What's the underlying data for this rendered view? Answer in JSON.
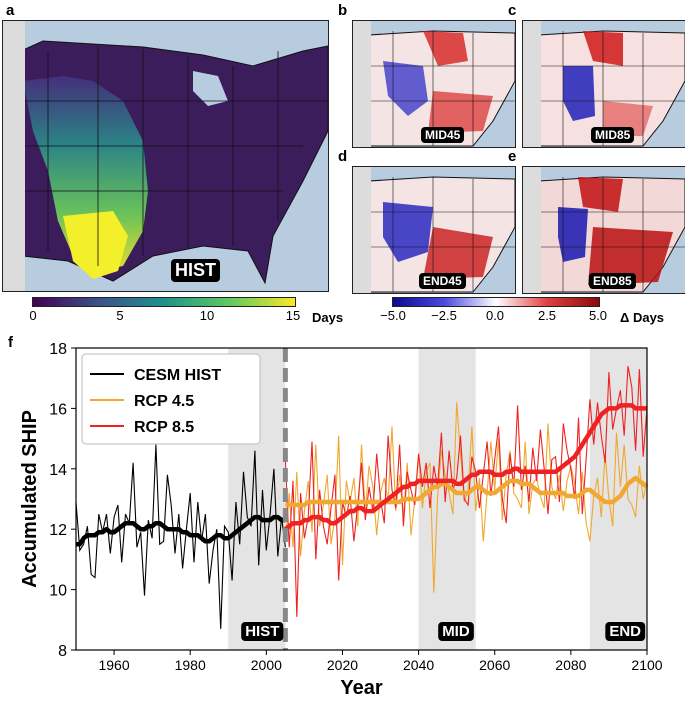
{
  "panels": {
    "a": {
      "label": "a",
      "tag": "HIST"
    },
    "b": {
      "label": "b",
      "tag": "MID45"
    },
    "c": {
      "label": "c",
      "tag": "MID85"
    },
    "d": {
      "label": "d",
      "tag": "END45"
    },
    "e": {
      "label": "e",
      "tag": "END85"
    },
    "f": {
      "label": "f"
    }
  },
  "colorbars": {
    "hist": {
      "ticks": [
        "0",
        "5",
        "10",
        "15"
      ],
      "unit": "Days",
      "min": 0,
      "max": 15
    },
    "diff": {
      "ticks": [
        "−5.0",
        "−2.5",
        "0.0",
        "2.5",
        "5.0"
      ],
      "unit": "Δ Days",
      "min": -5,
      "max": 5
    }
  },
  "colors": {
    "cesm": "#000000",
    "rcp45": "#f0a830",
    "rcp85": "#ee2222",
    "shade": "#e4e4e4",
    "ocean": "#b8cce0"
  },
  "chart_data": {
    "type": "line",
    "title": "",
    "xlabel": "Year",
    "ylabel": "Accumulated SHIP",
    "xlim": [
      1950,
      2100
    ],
    "ylim": [
      8,
      18
    ],
    "xticks": [
      1960,
      1980,
      2000,
      2020,
      2040,
      2060,
      2080,
      2100
    ],
    "yticks": [
      8,
      10,
      12,
      14,
      16,
      18
    ],
    "divider_year": 2005,
    "shaded_periods": [
      {
        "label": "HIST",
        "start": 1990,
        "end": 2005
      },
      {
        "label": "MID",
        "start": 2040,
        "end": 2055
      },
      {
        "label": "END",
        "start": 2085,
        "end": 2100
      }
    ],
    "series": [
      {
        "name": "CESM HIST",
        "start": 1950,
        "values": [
          12.9,
          11.3,
          11.5,
          12.1,
          10.5,
          10.4,
          12.5,
          11.9,
          12.5,
          11.2,
          12.4,
          12.8,
          10.9,
          12.5,
          12.2,
          14.2,
          11.4,
          11.9,
          9.8,
          12.3,
          11.7,
          14.8,
          11.5,
          11.6,
          13.8,
          12.8,
          11.2,
          12.5,
          10.7,
          12.0,
          13.2,
          10.9,
          12.9,
          11.6,
          12.5,
          10.2,
          11.3,
          12.0,
          8.7,
          12.1,
          11.9,
          10.3,
          12.9,
          11.5,
          13.9,
          12.4,
          12.1,
          14.6,
          10.8,
          13.3,
          11.3,
          12.5,
          14.0,
          11.1,
          12.4,
          11.4
        ],
        "smooth": [
          11.5,
          11.5,
          11.7,
          11.8,
          11.8,
          11.8,
          11.9,
          11.9,
          12.0,
          11.9,
          11.9,
          12.0,
          12.1,
          12.2,
          12.2,
          12.2,
          12.1,
          12.0,
          12.0,
          12.1,
          12.1,
          12.2,
          12.2,
          12.1,
          12.0,
          12.0,
          12.0,
          12.0,
          11.9,
          11.9,
          11.8,
          11.8,
          11.8,
          11.7,
          11.6,
          11.6,
          11.7,
          11.8,
          11.8,
          11.7,
          11.7,
          11.8,
          11.9,
          12.0,
          12.1,
          12.2,
          12.3,
          12.4,
          12.4,
          12.3,
          12.3,
          12.3,
          12.4,
          12.4,
          12.3,
          12.3
        ]
      },
      {
        "name": "RCP 4.5",
        "start": 2005,
        "values": [
          11.6,
          13.2,
          11.4,
          13.9,
          11.1,
          12.6,
          13.6,
          11.9,
          14.8,
          12.1,
          12.8,
          13.8,
          11.5,
          12.4,
          15.1,
          10.8,
          13.6,
          12.9,
          13.7,
          12.1,
          14.8,
          12.6,
          14.1,
          13.4,
          11.8,
          13.2,
          13.7,
          12.9,
          15.4,
          12.6,
          13.8,
          12.4,
          14.2,
          11.8,
          13.0,
          14.5,
          12.7,
          13.9,
          14.2,
          9.9,
          13.1,
          14.6,
          13.8,
          13.2,
          12.5,
          16.2,
          14.5,
          12.9,
          13.3,
          15.4,
          12.6,
          13.7,
          11.6,
          13.2,
          14.9,
          13.3,
          15.0,
          12.3,
          13.8,
          14.6,
          13.2,
          13.0,
          12.7,
          14.9,
          12.5,
          13.5,
          13.7,
          13.1,
          12.7,
          15.5,
          13.4,
          13.0,
          13.8,
          12.6,
          13.6,
          14.1,
          13.5,
          12.5,
          13.9,
          12.2,
          11.6,
          13.1,
          13.7,
          12.4,
          14.5,
          13.0,
          12.1,
          15.2,
          13.4,
          14.8,
          13.0,
          12.8,
          12.4,
          14.1,
          13.0,
          13.6
        ],
        "smooth": [
          12.8,
          12.8,
          12.8,
          12.8,
          12.8,
          12.8,
          12.9,
          12.9,
          12.9,
          12.9,
          12.9,
          12.9,
          12.9,
          12.9,
          12.9,
          12.9,
          12.9,
          12.9,
          12.9,
          12.9,
          12.9,
          12.9,
          12.9,
          12.9,
          12.9,
          12.9,
          12.9,
          12.9,
          12.9,
          12.9,
          12.9,
          13.0,
          13.0,
          13.0,
          13.0,
          13.0,
          13.1,
          13.2,
          13.3,
          13.4,
          13.4,
          13.5,
          13.5,
          13.4,
          13.3,
          13.2,
          13.2,
          13.2,
          13.2,
          13.3,
          13.4,
          13.4,
          13.3,
          13.2,
          13.2,
          13.2,
          13.3,
          13.4,
          13.5,
          13.6,
          13.6,
          13.6,
          13.5,
          13.5,
          13.5,
          13.4,
          13.3,
          13.2,
          13.2,
          13.2,
          13.2,
          13.2,
          13.2,
          13.2,
          13.1,
          13.1,
          13.1,
          13.1,
          13.2,
          13.3,
          13.3,
          13.2,
          13.1,
          13.0,
          12.9,
          12.9,
          12.9,
          13.0,
          13.1,
          13.3,
          13.5,
          13.6,
          13.7,
          13.6,
          13.5,
          13.4
        ]
      },
      {
        "name": "RCP 8.5",
        "start": 2005,
        "values": [
          14.3,
          11.4,
          13.6,
          9.1,
          13.2,
          11.7,
          12.4,
          14.9,
          11.0,
          13.3,
          12.1,
          11.5,
          12.7,
          13.8,
          10.3,
          12.9,
          12.4,
          13.1,
          11.6,
          12.8,
          14.2,
          12.3,
          13.4,
          12.6,
          14.5,
          13.0,
          12.2,
          15.1,
          13.3,
          12.7,
          14.8,
          12.1,
          13.9,
          13.3,
          12.8,
          14.5,
          13.4,
          14.2,
          12.7,
          14.1,
          13.4,
          15.2,
          12.9,
          14.6,
          13.3,
          13.7,
          15.1,
          13.0,
          12.8,
          14.4,
          13.9,
          12.7,
          13.8,
          14.9,
          13.1,
          14.3,
          15.4,
          13.0,
          12.2,
          14.5,
          13.4,
          16.1,
          13.3,
          14.1,
          12.9,
          14.7,
          13.6,
          15.3,
          14.0,
          12.5,
          14.3,
          14.4,
          12.9,
          15.5,
          14.6,
          14.0,
          13.0,
          15.7,
          12.5,
          14.3,
          16.3,
          14.8,
          16.2,
          15.1,
          14.2,
          17.2,
          15.3,
          16.0,
          16.6,
          15.1,
          17.4,
          16.7,
          14.6,
          17.3,
          14.4,
          16.0
        ],
        "smooth": [
          12.0,
          12.1,
          12.2,
          12.2,
          12.2,
          12.3,
          12.3,
          12.4,
          12.4,
          12.4,
          12.3,
          12.3,
          12.2,
          12.2,
          12.3,
          12.4,
          12.5,
          12.6,
          12.6,
          12.7,
          12.7,
          12.6,
          12.6,
          12.6,
          12.7,
          12.8,
          12.9,
          13.0,
          13.1,
          13.2,
          13.3,
          13.4,
          13.4,
          13.5,
          13.5,
          13.6,
          13.6,
          13.6,
          13.6,
          13.6,
          13.6,
          13.6,
          13.6,
          13.6,
          13.6,
          13.5,
          13.5,
          13.6,
          13.7,
          13.8,
          13.8,
          13.9,
          13.9,
          13.9,
          13.9,
          13.8,
          13.8,
          13.8,
          13.9,
          13.9,
          14.0,
          14.0,
          13.9,
          13.9,
          13.9,
          13.9,
          13.9,
          13.9,
          13.9,
          13.9,
          13.9,
          13.9,
          14.0,
          14.1,
          14.2,
          14.3,
          14.4,
          14.6,
          14.8,
          15.0,
          15.2,
          15.4,
          15.6,
          15.8,
          15.9,
          16.0,
          16.0,
          16.0,
          16.1,
          16.1,
          16.1,
          16.1,
          16.0,
          16.0,
          16.0,
          16.0
        ]
      }
    ]
  }
}
